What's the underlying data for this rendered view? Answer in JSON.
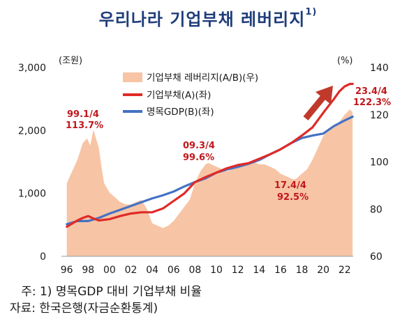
{
  "title": "우리나라 기업부채 레버리지",
  "title_footnote": "1)",
  "chart_data": {
    "type": "line",
    "x_label_ticks": [
      "96",
      "98",
      "00",
      "02",
      "04",
      "06",
      "08",
      "10",
      "12",
      "14",
      "16",
      "18",
      "20",
      "22"
    ],
    "left_axis": {
      "unit": "(조원)",
      "ticks": [
        "0",
        "1,000",
        "2,000",
        "3,000"
      ],
      "range": [
        0,
        3000
      ]
    },
    "right_axis": {
      "unit": "(%)",
      "ticks": [
        "60",
        "80",
        "100",
        "120",
        "140"
      ],
      "range": [
        60,
        140
      ]
    },
    "series": [
      {
        "name": "기업부채 레버리지(A/B)(우)",
        "type": "area",
        "axis": "right",
        "color": "#f7c5a5",
        "x": [
          1996.0,
          1996.5,
          1997.0,
          1997.5,
          1997.9,
          1998.2,
          1998.5,
          1998.8,
          1999.0,
          1999.25,
          1999.5,
          2000.0,
          2000.5,
          2001.0,
          2001.5,
          2002.0,
          2002.5,
          2003.0,
          2003.5,
          2004.0,
          2004.5,
          2005.0,
          2005.5,
          2006.0,
          2006.5,
          2007.0,
          2007.5,
          2008.0,
          2008.5,
          2009.0,
          2009.25,
          2009.5,
          2010.0,
          2010.5,
          2011.0,
          2011.5,
          2012.0,
          2012.5,
          2013.0,
          2013.5,
          2014.0,
          2014.5,
          2015.0,
          2015.5,
          2016.0,
          2016.5,
          2017.0,
          2017.25,
          2017.5,
          2018.0,
          2018.5,
          2019.0,
          2019.5,
          2020.0,
          2020.5,
          2021.0,
          2021.5,
          2022.0,
          2022.5,
          2022.75
        ],
        "values": [
          91,
          96,
          101,
          108,
          110,
          107,
          113.7,
          109,
          106,
          98,
          91,
          87,
          85,
          83,
          82,
          82,
          83,
          84,
          80,
          74,
          73,
          72,
          73,
          75,
          78,
          81,
          84,
          91,
          96,
          99,
          99.6,
          99,
          98,
          97,
          96,
          97,
          98,
          99,
          99,
          100,
          99,
          99,
          98,
          97,
          95,
          94,
          93,
          92.5,
          93,
          95,
          97,
          101,
          106,
          111,
          114,
          115,
          117,
          120,
          122.3,
          121
        ]
      },
      {
        "name": "기업부채(A)(좌)",
        "type": "line",
        "axis": "left",
        "color": "#e02a27",
        "x": [
          1996.0,
          1997.0,
          1997.5,
          1998.0,
          1998.5,
          1999.0,
          2000.0,
          2001.0,
          2002.0,
          2003.0,
          2004.0,
          2005.0,
          2006.0,
          2007.0,
          2008.0,
          2009.0,
          2010.0,
          2011.0,
          2012.0,
          2013.0,
          2014.0,
          2015.0,
          2016.0,
          2017.0,
          2018.0,
          2019.0,
          2020.0,
          2021.0,
          2021.5,
          2022.0,
          2022.5,
          2022.75
        ],
        "values": [
          470,
          570,
          610,
          640,
          600,
          570,
          590,
          640,
          680,
          700,
          700,
          760,
          880,
          1000,
          1180,
          1260,
          1330,
          1400,
          1450,
          1480,
          1550,
          1620,
          1700,
          1800,
          1920,
          2050,
          2280,
          2500,
          2620,
          2700,
          2740,
          2740
        ]
      },
      {
        "name": "명목GDP(B)(좌)",
        "type": "line",
        "axis": "left",
        "color": "#4472c4",
        "x": [
          1996.0,
          1997.0,
          1998.0,
          1999.0,
          2000.0,
          2001.0,
          2002.0,
          2003.0,
          2004.0,
          2005.0,
          2006.0,
          2007.0,
          2008.0,
          2009.0,
          2010.0,
          2011.0,
          2012.0,
          2013.0,
          2014.0,
          2015.0,
          2016.0,
          2017.0,
          2018.0,
          2019.0,
          2020.0,
          2021.0,
          2022.0,
          2022.75
        ],
        "values": [
          510,
          560,
          560,
          610,
          680,
          740,
          800,
          860,
          920,
          970,
          1030,
          1110,
          1180,
          1240,
          1330,
          1380,
          1420,
          1470,
          1530,
          1620,
          1700,
          1800,
          1880,
          1920,
          1950,
          2070,
          2160,
          2220
        ]
      }
    ],
    "annotations": [
      {
        "label": "99.1/4",
        "value": "113.7%"
      },
      {
        "label": "09.3/4",
        "value": "99.6%"
      },
      {
        "label": "17.4/4",
        "value": "92.5%"
      },
      {
        "label": "23.4/4",
        "value": "122.3%"
      }
    ],
    "legend_position": "top-center",
    "grid": false
  },
  "footnotes": {
    "note": "   주: 1) 명목GDP 대비 기업부채 비율",
    "source": "자료: 한국은행(자금순환통계)"
  }
}
